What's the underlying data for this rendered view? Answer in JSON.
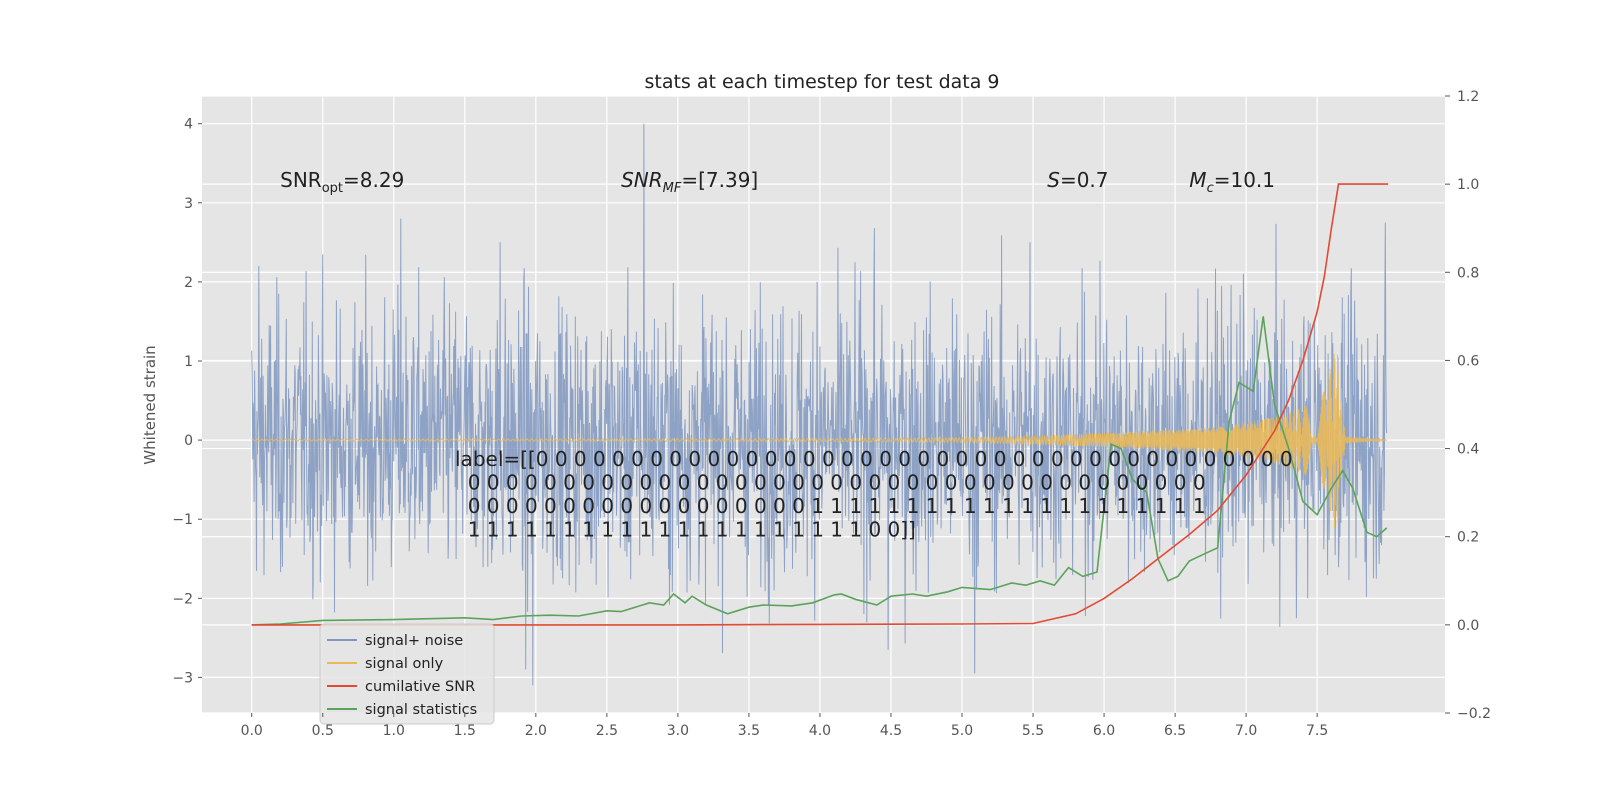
{
  "chart_data": {
    "type": "line",
    "title": "stats at each timestep for test data 9",
    "ylabel": "Whitened strain",
    "xlabel": "",
    "grid": true,
    "legend_placement": "lower-left",
    "xlim": [
      -0.35,
      8.4
    ],
    "ylim": [
      -3.45,
      4.35
    ],
    "y2lim": [
      -0.2,
      1.2
    ],
    "x_ticks": [
      0.0,
      0.5,
      1.0,
      1.5,
      2.0,
      2.5,
      3.0,
      3.5,
      4.0,
      4.5,
      5.0,
      5.5,
      6.0,
      6.5,
      7.0,
      7.5
    ],
    "x_tick_labels": [
      "0.0",
      "0.5",
      "1.0",
      "1.5",
      "2.0",
      "2.5",
      "3.0",
      "3.5",
      "4.0",
      "4.5",
      "5.0",
      "5.5",
      "6.0",
      "6.5",
      "7.0",
      "7.5"
    ],
    "y_ticks": [
      4,
      3,
      2,
      1,
      0,
      -1,
      -2,
      -3
    ],
    "y_tick_labels": [
      "4",
      "3",
      "2",
      "1",
      "0",
      "−1",
      "−2",
      "−3"
    ],
    "y2_ticks": [
      1.2,
      1.0,
      0.8,
      0.6,
      0.4,
      0.2,
      0.0,
      -0.2
    ],
    "y2_tick_labels": [
      "1.2",
      "1.0",
      "0.8",
      "0.6",
      "0.4",
      "0.2",
      "0.0",
      "−0.2"
    ],
    "annotations": [
      {
        "text": "SNR_opt=8.29",
        "x": 0.2,
        "y": 3.3,
        "italic": false
      },
      {
        "text": "SNR_MF=[7.39]",
        "x": 2.6,
        "y": 3.3,
        "italic": true
      },
      {
        "text": "S=0.7",
        "x": 5.6,
        "y": 3.3,
        "italic": true
      },
      {
        "text": "M_c=10.1",
        "x": 6.6,
        "y": 3.3,
        "italic": true
      }
    ],
    "label_text_lines": [
      "label=[[0 0 0 0 0 0 0 0 0 0 0 0 0 0 0 0 0 0 0 0 0 0 0 0 0 0 0 0 0 0 0 0 0 0 0 0 0 0 0 0",
      "  0 0 0 0 0 0 0 0 0 0 0 0 0 0 0 0 0 0 0 0 0 0 0 0 0 0 0 0 0 0 0 0 0 0 0 0 0 0 0",
      "  0 0 0 0 0 0 0 0 0 0 0 0 0 0 0 0 0 0 1 1 1 1 1 1 1 1 1 1 1 1 1 1 1 1 1 1 1 1 1",
      "  1 1 1 1 1 1 1 1 1 1 1 1 1 1 1 1 1 1 1 1 1 0 0]]"
    ],
    "series": [
      {
        "name": "signal+ noise",
        "axis": "left",
        "color": "#7f96c0",
        "style": "dense noise, roughly Gaussian, std ~0.9, extremes -3.1 to 4.0",
        "x_range": [
          0.0,
          7.99
        ],
        "envelope_peaks": [
          {
            "x": 0.05,
            "y": 2.2
          },
          {
            "x": 1.05,
            "y": 2.8
          },
          {
            "x": 1.75,
            "y": 2.5
          },
          {
            "x": 2.76,
            "y": 4.02
          },
          {
            "x": 3.98,
            "y": 2.0
          },
          {
            "x": 4.38,
            "y": 1.95
          },
          {
            "x": 5.48,
            "y": 2.5
          },
          {
            "x": 7.98,
            "y": 2.75
          },
          {
            "x": 1.98,
            "y": -3.1
          },
          {
            "x": 1.93,
            "y": -2.9
          },
          {
            "x": 5.09,
            "y": -2.95
          },
          {
            "x": 4.48,
            "y": -2.65
          }
        ]
      },
      {
        "name": "signal only",
        "axis": "left",
        "color": "#e8b95a",
        "style": "chirp: amplitude grows from ~0 to ~1.25 at merger near x=7.65, then rings down to 0",
        "amplitude": {
          "x": [
            0,
            4.0,
            5.0,
            5.5,
            6.0,
            6.5,
            6.8,
            7.0,
            7.2,
            7.4,
            7.55,
            7.64,
            7.66,
            7.7,
            7.99
          ],
          "a": [
            0.01,
            0.02,
            0.03,
            0.05,
            0.09,
            0.13,
            0.17,
            0.22,
            0.29,
            0.42,
            0.62,
            1.25,
            0.6,
            0.05,
            0.0
          ]
        }
      },
      {
        "name": "cumilative SNR",
        "axis": "right",
        "color": "#e24a33",
        "x": [
          0.0,
          0.5,
          1.0,
          2.0,
          3.0,
          4.0,
          5.0,
          5.5,
          5.8,
          6.0,
          6.2,
          6.4,
          6.6,
          6.8,
          7.0,
          7.2,
          7.3,
          7.4,
          7.5,
          7.55,
          7.6,
          7.65,
          7.7,
          8.0
        ],
        "values": [
          0.0,
          0.0,
          0.0,
          0.0,
          0.0,
          0.001,
          0.002,
          0.003,
          0.025,
          0.06,
          0.105,
          0.155,
          0.205,
          0.26,
          0.34,
          0.44,
          0.51,
          0.6,
          0.71,
          0.79,
          0.9,
          1.0,
          1.0,
          1.0
        ]
      },
      {
        "name": "signal statistics",
        "axis": "right",
        "color": "#5ba35b",
        "x": [
          0.0,
          0.2,
          0.5,
          1.0,
          1.5,
          1.7,
          1.9,
          2.1,
          2.3,
          2.5,
          2.6,
          2.8,
          2.9,
          2.97,
          3.05,
          3.1,
          3.2,
          3.35,
          3.5,
          3.6,
          3.8,
          3.95,
          4.1,
          4.15,
          4.25,
          4.4,
          4.5,
          4.65,
          4.75,
          4.9,
          5.0,
          5.2,
          5.35,
          5.45,
          5.55,
          5.65,
          5.75,
          5.85,
          5.95,
          6.05,
          6.12,
          6.2,
          6.3,
          6.38,
          6.45,
          6.52,
          6.6,
          6.7,
          6.8,
          6.88,
          6.95,
          7.05,
          7.12,
          7.2,
          7.3,
          7.4,
          7.5,
          7.6,
          7.68,
          7.75,
          7.85,
          7.92,
          7.99
        ],
        "values": [
          0.0,
          0.002,
          0.01,
          0.012,
          0.016,
          0.012,
          0.02,
          0.022,
          0.02,
          0.032,
          0.03,
          0.05,
          0.045,
          0.07,
          0.05,
          0.065,
          0.045,
          0.025,
          0.04,
          0.045,
          0.043,
          0.05,
          0.068,
          0.07,
          0.058,
          0.045,
          0.065,
          0.07,
          0.065,
          0.075,
          0.085,
          0.08,
          0.095,
          0.09,
          0.1,
          0.09,
          0.13,
          0.11,
          0.12,
          0.41,
          0.4,
          0.33,
          0.3,
          0.15,
          0.1,
          0.11,
          0.145,
          0.16,
          0.175,
          0.46,
          0.55,
          0.53,
          0.7,
          0.5,
          0.4,
          0.28,
          0.25,
          0.31,
          0.35,
          0.31,
          0.21,
          0.2,
          0.22
        ]
      }
    ],
    "legend": {
      "entries": [
        "signal+ noise",
        "signal only",
        "cumilative SNR",
        "signal statistics"
      ]
    }
  }
}
